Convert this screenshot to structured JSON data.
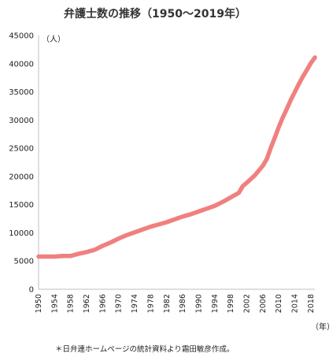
{
  "chart_data": {
    "type": "line",
    "title": "弁護士数の推移（1950～2019年）",
    "ylabel": "（人）",
    "xlabel": "（年）",
    "source_note": "＊日弁連ホームページの統計資料より霜田敏彦作成。",
    "ylim": [
      0,
      45000
    ],
    "y_ticks": [
      "0",
      "5000",
      "10000",
      "15000",
      "20000",
      "25000",
      "30000",
      "35000",
      "40000",
      "45000"
    ],
    "y_tick_values": [
      0,
      5000,
      10000,
      15000,
      20000,
      25000,
      30000,
      35000,
      40000,
      45000
    ],
    "x_ticks": [
      "1950",
      "1954",
      "1958",
      "1962",
      "1966",
      "1970",
      "1974",
      "1978",
      "1982",
      "1986",
      "1990",
      "1994",
      "1998",
      "2002",
      "2006",
      "2010",
      "2014",
      "2018"
    ],
    "x_tick_values": [
      1950,
      1954,
      1958,
      1962,
      1966,
      1970,
      1974,
      1978,
      1982,
      1986,
      1990,
      1994,
      1998,
      2002,
      2006,
      2010,
      2014,
      2018
    ],
    "xlim": [
      1950,
      2019
    ],
    "grid": false,
    "line_color": "#f08080",
    "series": [
      {
        "x": [
          1950,
          1952,
          1954,
          1956,
          1958,
          1960,
          1962,
          1964,
          1966,
          1968,
          1970,
          1972,
          1974,
          1976,
          1978,
          1980,
          1982,
          1984,
          1986,
          1988,
          1990,
          1992,
          1994,
          1996,
          1998,
          2000,
          2001,
          2002,
          2004,
          2006,
          2007,
          2008,
          2009,
          2010,
          2011,
          2012,
          2013,
          2014,
          2015,
          2016,
          2017,
          2018,
          2019
        ],
        "values": [
          5800,
          5800,
          5800,
          5900,
          5900,
          6300,
          6600,
          7000,
          7700,
          8300,
          9000,
          9600,
          10100,
          10600,
          11100,
          11500,
          11900,
          12400,
          12900,
          13300,
          13800,
          14300,
          14800,
          15500,
          16300,
          17100,
          18300,
          18900,
          20200,
          21900,
          23100,
          25100,
          26900,
          28800,
          30500,
          32000,
          33600,
          35000,
          36400,
          37700,
          38900,
          40100,
          41100
        ]
      }
    ]
  }
}
